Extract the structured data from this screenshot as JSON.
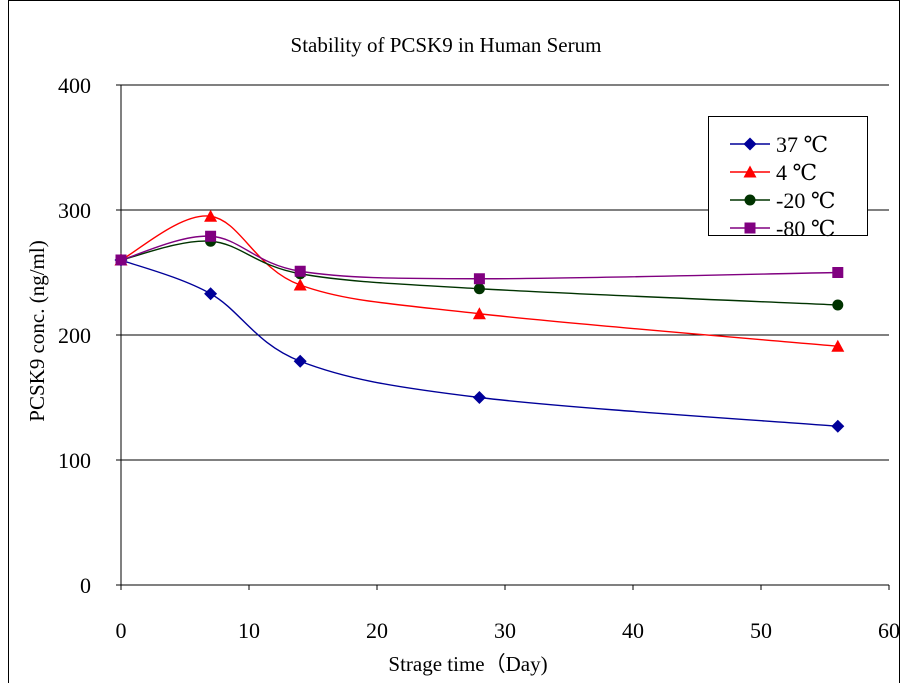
{
  "chart_data": {
    "type": "line",
    "title": "Stability of PCSK9 in Human Serum",
    "xlabel": "Strage time（Day)",
    "ylabel": "PCSK9 conc. (ng/ml)",
    "xlim": [
      0,
      60
    ],
    "ylim": [
      0,
      400
    ],
    "x_ticks": [
      0,
      10,
      20,
      30,
      40,
      50,
      60
    ],
    "y_ticks": [
      0,
      100,
      200,
      300,
      400
    ],
    "x_tick_labels": [
      "0",
      "10",
      "20",
      "30",
      "40",
      "50",
      "60"
    ],
    "y_tick_labels": [
      "0",
      "100",
      "200",
      "300",
      "400"
    ],
    "grid": "horizontal",
    "smooth": true,
    "legend_position": "top-right",
    "x": [
      0,
      7,
      14,
      28,
      56
    ],
    "series": [
      {
        "name": "37 ℃",
        "values": [
          260,
          233,
          179,
          150,
          127
        ],
        "color": "#000099",
        "marker": "diamond"
      },
      {
        "name": "4 ℃",
        "values": [
          260,
          295,
          240,
          217,
          191
        ],
        "color": "#ff0000",
        "marker": "triangle"
      },
      {
        "name": "-20 ℃",
        "values": [
          260,
          275,
          249,
          237,
          224
        ],
        "color": "#003300",
        "marker": "circle"
      },
      {
        "name": "-80 ℃",
        "values": [
          260,
          279,
          251,
          245,
          250
        ],
        "color": "#800080",
        "marker": "square"
      }
    ]
  }
}
